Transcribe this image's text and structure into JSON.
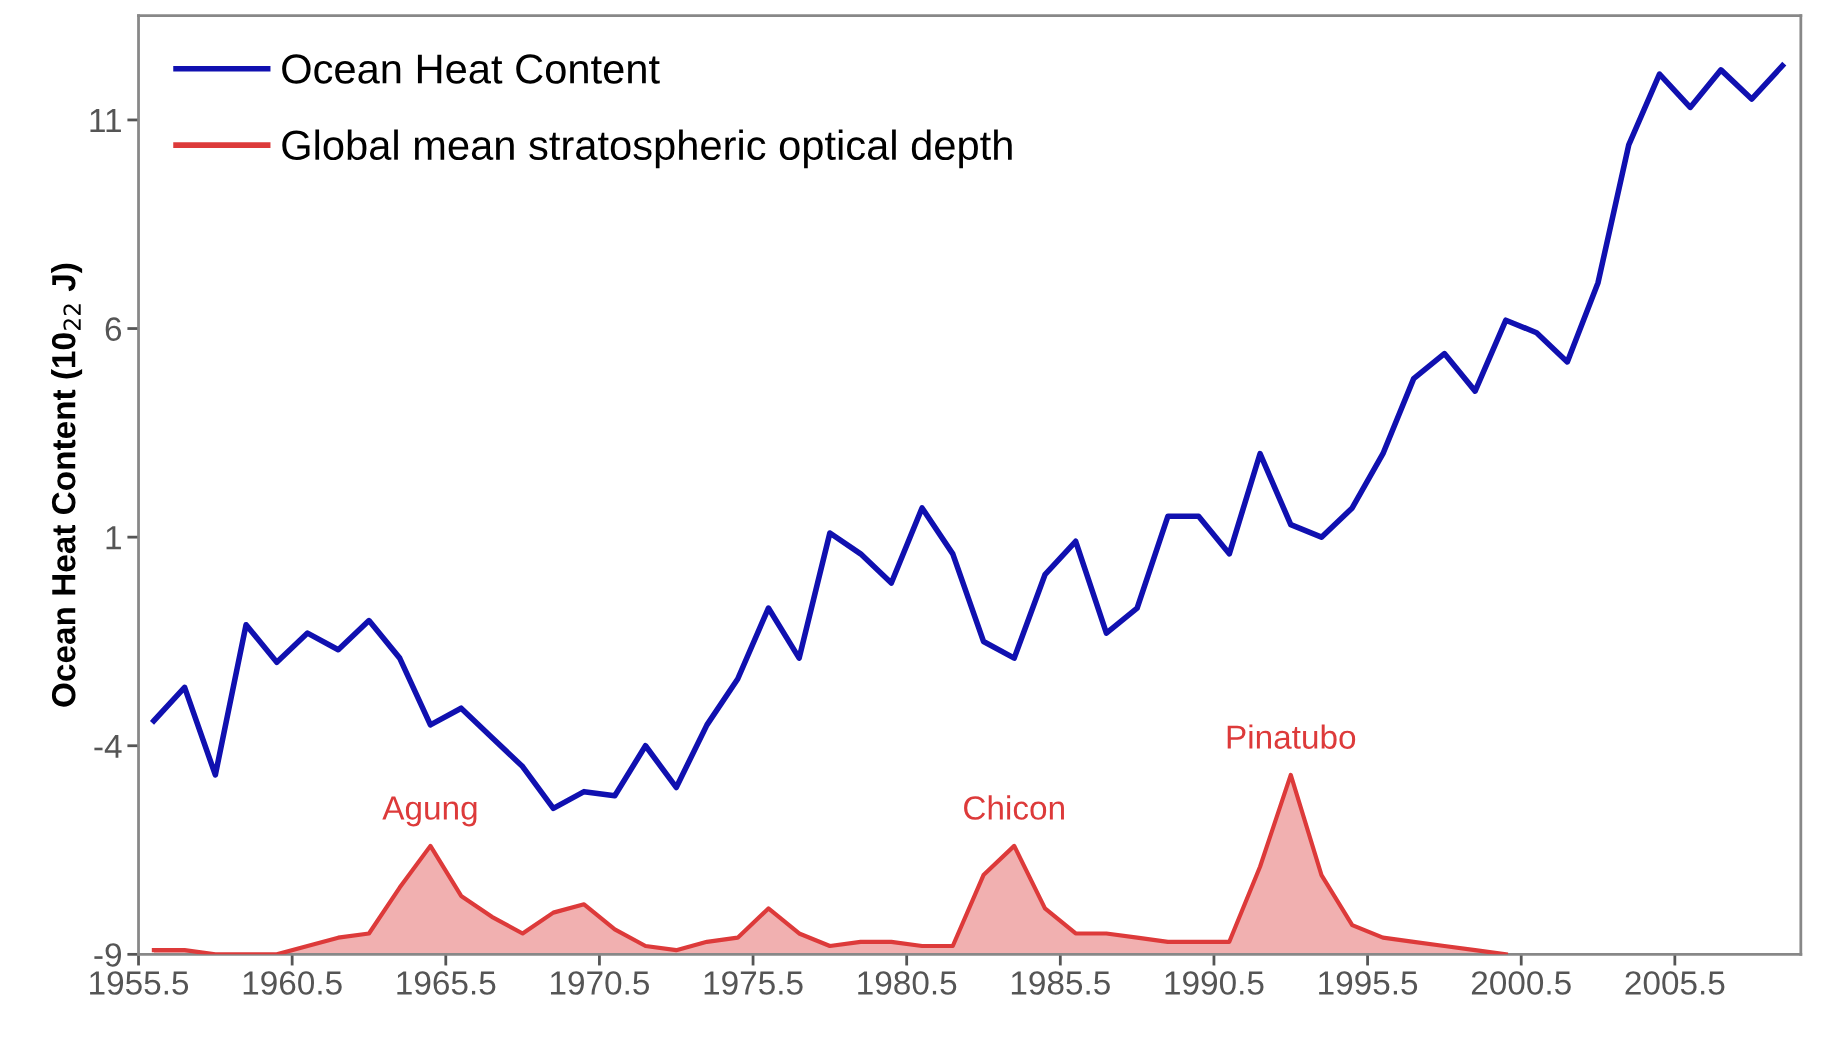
{
  "chart_data": {
    "type": "line",
    "ylabel": "Ocean Heat Content (10$_{22}$ J)",
    "x": [
      1956,
      1957,
      1958,
      1959,
      1960,
      1961,
      1962,
      1963,
      1964,
      1965,
      1966,
      1967,
      1968,
      1969,
      1970,
      1971,
      1972,
      1973,
      1974,
      1975,
      1976,
      1977,
      1978,
      1979,
      1980,
      1981,
      1982,
      1983,
      1984,
      1985,
      1986,
      1987,
      1988,
      1989,
      1990,
      1991,
      1992,
      1993,
      1994,
      1995,
      1996,
      1997,
      1998,
      1999,
      2000,
      2001,
      2002,
      2003,
      2004,
      2005,
      2006,
      2007,
      2008,
      2009
    ],
    "series": [
      {
        "name": "Ocean Heat Content",
        "color": "#1010b0",
        "values": [
          -3.4,
          -2.6,
          -4.7,
          -1.1,
          -2.0,
          -1.3,
          -1.7,
          -1.0,
          -1.9,
          -3.5,
          -3.1,
          -3.8,
          -4.5,
          -5.5,
          -5.1,
          -5.2,
          -4.0,
          -5.0,
          -3.5,
          -2.4,
          -0.7,
          -1.9,
          1.1,
          0.6,
          -0.1,
          1.7,
          0.6,
          -1.5,
          -1.9,
          0.1,
          0.9,
          -1.3,
          -0.7,
          1.5,
          1.5,
          0.6,
          3.0,
          1.3,
          1.0,
          1.7,
          3.0,
          4.8,
          5.4,
          4.5,
          6.2,
          5.9,
          5.2,
          7.1,
          10.4,
          12.1,
          11.3,
          12.2,
          11.5,
          12.3
        ]
      },
      {
        "name": "Global mean stratospheric optical depth",
        "type": "area",
        "color": "#dd3a3a",
        "values": [
          -8.9,
          -8.9,
          -9.0,
          -9.0,
          -9.0,
          -8.8,
          -8.6,
          -8.5,
          -7.4,
          -6.4,
          -7.6,
          -8.1,
          -8.5,
          -8.0,
          -7.8,
          -8.4,
          -8.8,
          -8.9,
          -8.7,
          -8.6,
          -7.9,
          -8.5,
          -8.8,
          -8.7,
          -8.7,
          -8.8,
          -8.8,
          -7.1,
          -6.4,
          -7.9,
          -8.5,
          -8.5,
          -8.6,
          -8.7,
          -8.7,
          -8.7,
          -6.9,
          -4.7,
          -7.1,
          -8.3,
          -8.6,
          -8.7,
          -8.8,
          -8.9,
          -9.0,
          null,
          null,
          null,
          null,
          null,
          null,
          null,
          null,
          null
        ]
      }
    ],
    "xlim": [
      1955.5,
      2009.6
    ],
    "xticks": [
      {
        "value": 1955.5,
        "label": "1955.5"
      },
      {
        "value": 1960.5,
        "label": "1960.5"
      },
      {
        "value": 1965.5,
        "label": "1965.5"
      },
      {
        "value": 1970.5,
        "label": "1970.5"
      },
      {
        "value": 1975.5,
        "label": "1975.5"
      },
      {
        "value": 1980.5,
        "label": "1980.5"
      },
      {
        "value": 1985.5,
        "label": "1985.5"
      },
      {
        "value": 1990.5,
        "label": "1990.5"
      },
      {
        "value": 1995.5,
        "label": "1995.5"
      },
      {
        "value": 2000.5,
        "label": "2000.5"
      },
      {
        "value": 2005.5,
        "label": "2005.5"
      }
    ],
    "ylim": [
      -9,
      13.5
    ],
    "yticks": [
      -9,
      -4,
      1,
      6,
      11
    ],
    "annotations": [
      {
        "text": "Agung",
        "x": 1965,
        "y": -6.4
      },
      {
        "text": "Chicon",
        "x": 1984,
        "y": -6.4
      },
      {
        "text": "Pinatubo",
        "x": 1993,
        "y": -4.7
      }
    ],
    "legend": "top left",
    "grid": false,
    "marker": "none",
    "line_style": "solid"
  }
}
